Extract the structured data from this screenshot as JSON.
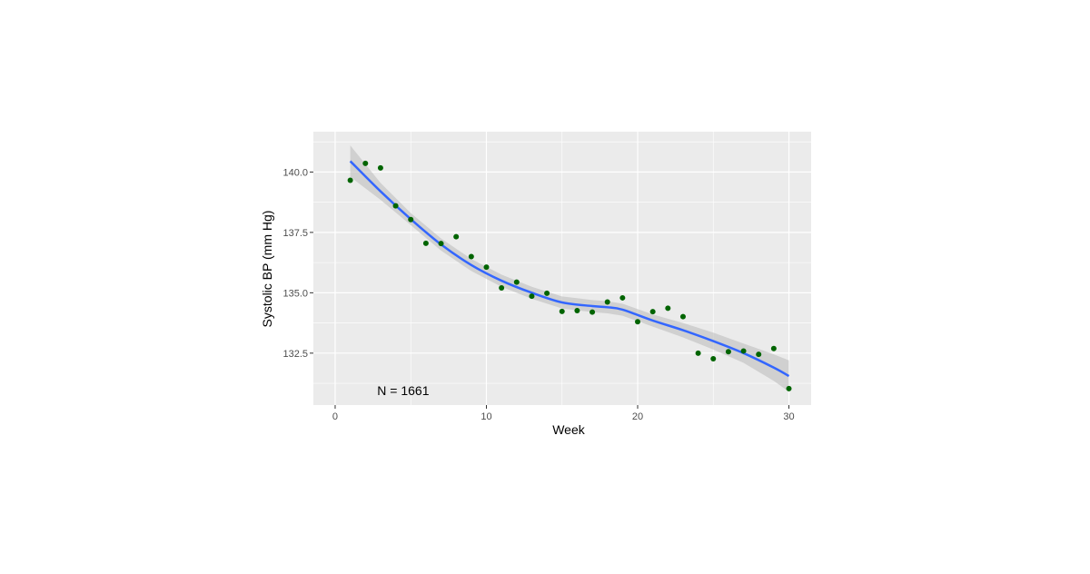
{
  "chart_data": {
    "type": "scatter",
    "title": "",
    "xlabel": "Week",
    "ylabel": "Systolic BP (mm Hg)",
    "xlim": [
      -1.44,
      31.47
    ],
    "ylim": [
      130.35,
      141.67
    ],
    "x_ticks": [
      0,
      10,
      20,
      30
    ],
    "x_tick_labels": [
      "0",
      "10",
      "20",
      "30"
    ],
    "y_ticks": [
      132.5,
      135.0,
      137.5,
      140.0
    ],
    "y_tick_labels": [
      "132.5",
      "135.0",
      "137.5",
      "140.0"
    ],
    "grid": true,
    "annotation": {
      "text": "N = 1661",
      "x": 4.5,
      "y": 130.95
    },
    "points": {
      "color": "#006400",
      "x": [
        1,
        2,
        3,
        4,
        5,
        6,
        7,
        8,
        9,
        10,
        11,
        12,
        13,
        14,
        15,
        16,
        17,
        18,
        19,
        20,
        21,
        22,
        23,
        24,
        25,
        26,
        27,
        28,
        29,
        30
      ],
      "y": [
        139.66,
        140.36,
        140.17,
        138.6,
        138.03,
        137.05,
        137.04,
        137.32,
        136.5,
        136.06,
        135.2,
        135.44,
        134.86,
        134.98,
        134.23,
        134.26,
        134.2,
        134.62,
        134.79,
        133.8,
        134.22,
        134.36,
        134.01,
        132.5,
        132.27,
        132.56,
        132.59,
        132.45,
        132.69,
        131.03
      ]
    },
    "smooth": {
      "color": "#3366FF",
      "band_color": "#BEBEBE",
      "x": [
        1,
        3,
        5,
        7,
        9,
        11,
        13,
        15,
        17,
        18,
        19,
        21,
        23,
        25,
        27,
        29,
        30
      ],
      "y": [
        140.45,
        139.2,
        138.05,
        137.0,
        136.15,
        135.5,
        135.0,
        134.6,
        134.45,
        134.4,
        134.3,
        133.85,
        133.45,
        133.0,
        132.5,
        131.9,
        131.55
      ],
      "lower": [
        139.8,
        138.85,
        137.8,
        136.75,
        135.9,
        135.25,
        134.75,
        134.35,
        134.2,
        134.15,
        134.05,
        133.6,
        133.15,
        132.65,
        132.1,
        131.35,
        130.9
      ],
      "upper": [
        141.1,
        139.55,
        138.3,
        137.25,
        136.4,
        135.75,
        135.25,
        134.85,
        134.7,
        134.65,
        134.55,
        134.1,
        133.75,
        133.35,
        132.9,
        132.45,
        132.2
      ]
    }
  }
}
